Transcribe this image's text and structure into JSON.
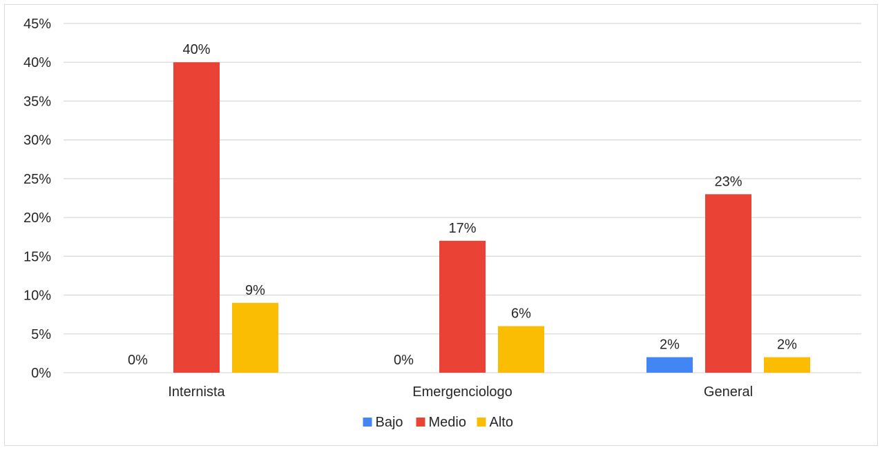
{
  "chart_data": {
    "type": "bar",
    "categories": [
      "Internista",
      "Emergenciologo",
      "General"
    ],
    "series": [
      {
        "name": "Bajo",
        "values": [
          0,
          0,
          2
        ],
        "color": "#4285F4"
      },
      {
        "name": "Medio",
        "values": [
          40,
          17,
          23
        ],
        "color": "#EA4335"
      },
      {
        "name": "Alto",
        "values": [
          9,
          6,
          2
        ],
        "color": "#FBBC04"
      }
    ],
    "ylim": [
      0,
      45
    ],
    "ytick_step": 5,
    "value_suffix": "%",
    "grid": true,
    "legend_position": "bottom",
    "title": "",
    "xlabel": "",
    "ylabel": ""
  }
}
